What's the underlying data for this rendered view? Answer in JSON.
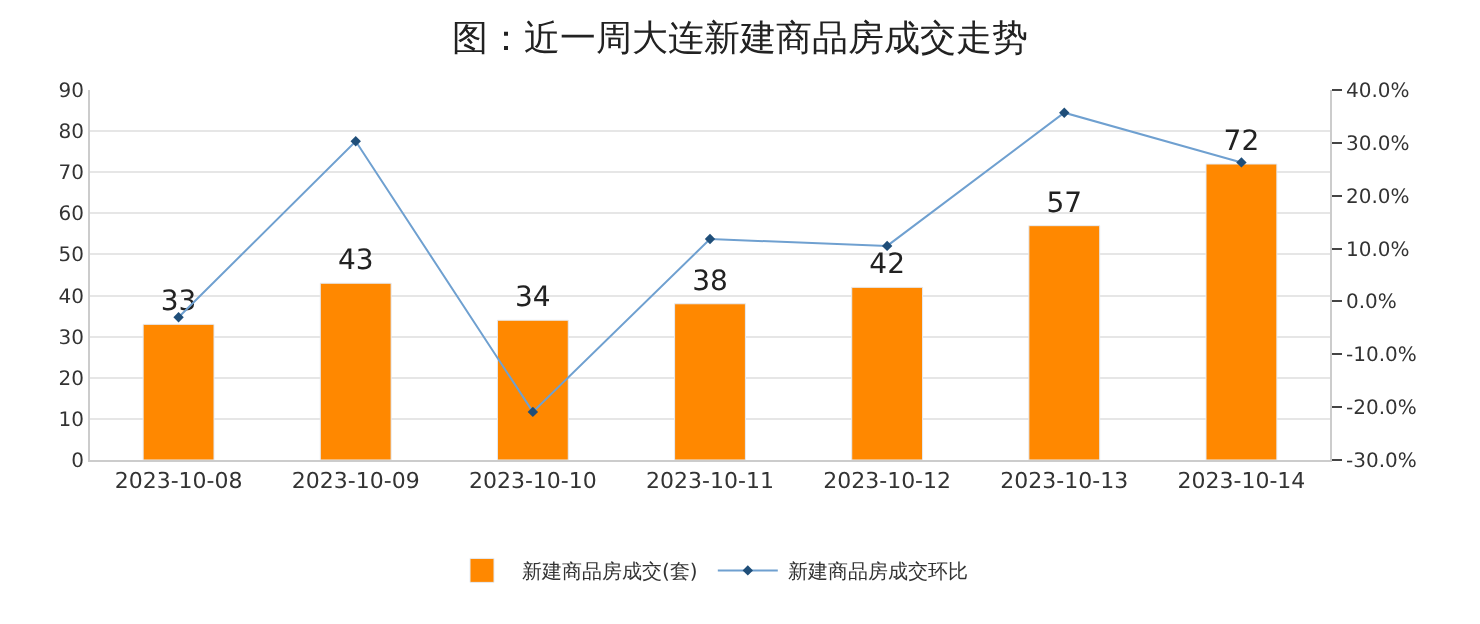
{
  "chart_data": {
    "type": "bar",
    "title": "图：近一周大连新建商品房成交走势",
    "categories": [
      "2023-10-08",
      "2023-10-09",
      "2023-10-10",
      "2023-10-11",
      "2023-10-12",
      "2023-10-13",
      "2023-10-14"
    ],
    "series": [
      {
        "name": "新建商品房成交(套)",
        "color": "#ff8800",
        "values": [
          33,
          43,
          34,
          38,
          42,
          57,
          72
        ],
        "value_labels": [
          "33",
          "43",
          "34",
          "38",
          "42",
          "57",
          "72"
        ]
      },
      {
        "name": "新建商品房成交环比",
        "type": "line",
        "axis": "y2",
        "color": "#6fa0d0",
        "marker": "diamond",
        "values": [
          -3.0,
          30.3,
          -20.9,
          11.8,
          10.5,
          35.7,
          26.3
        ]
      }
    ],
    "ylim": [
      0,
      90
    ],
    "yticks": [
      0,
      10,
      20,
      30,
      40,
      50,
      60,
      70,
      80,
      90
    ],
    "y2lim": [
      -30,
      40
    ],
    "y2ticks": [
      {
        "value": -30,
        "label": "-30.0%"
      },
      {
        "value": -20,
        "label": "-20.0%"
      },
      {
        "value": -10,
        "label": "-10.0%"
      },
      {
        "value": 0,
        "label": "0.0%"
      },
      {
        "value": 10,
        "label": "10.0%"
      },
      {
        "value": 20,
        "label": "20.0%"
      },
      {
        "value": 30,
        "label": "30.0%"
      },
      {
        "value": 40,
        "label": "40.0%"
      }
    ],
    "grid": "y",
    "legend": "bottom"
  }
}
